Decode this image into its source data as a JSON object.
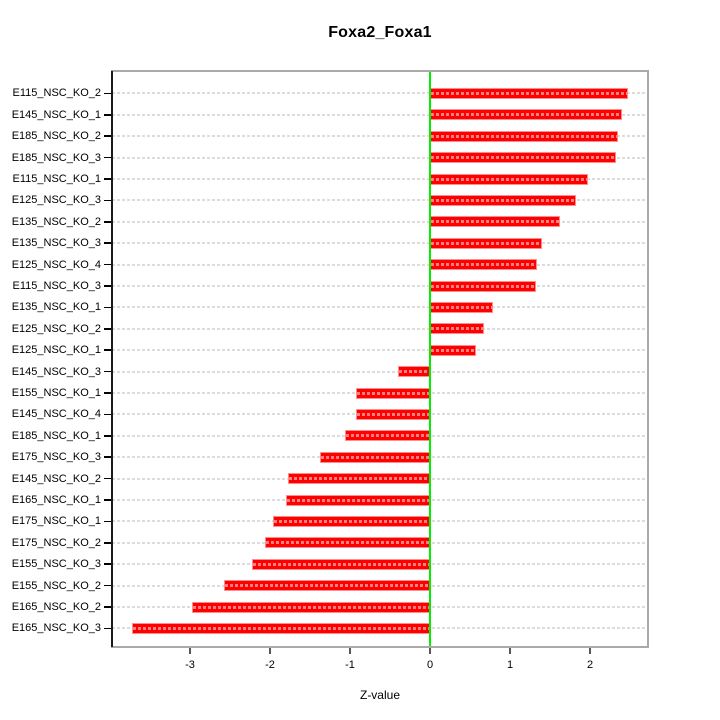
{
  "chart_data": {
    "type": "bar",
    "orientation": "horizontal",
    "title": "Foxa2_Foxa1",
    "xlabel": "Z-value",
    "ylabel": "",
    "categories": [
      "E115_NSC_KO_2",
      "E145_NSC_KO_1",
      "E185_NSC_KO_2",
      "E185_NSC_KO_3",
      "E115_NSC_KO_1",
      "E125_NSC_KO_3",
      "E135_NSC_KO_2",
      "E135_NSC_KO_3",
      "E125_NSC_KO_4",
      "E115_NSC_KO_3",
      "E135_NSC_KO_1",
      "E125_NSC_KO_2",
      "E125_NSC_KO_1",
      "E145_NSC_KO_3",
      "E155_NSC_KO_1",
      "E145_NSC_KO_4",
      "E185_NSC_KO_1",
      "E175_NSC_KO_3",
      "E145_NSC_KO_2",
      "E165_NSC_KO_1",
      "E175_NSC_KO_1",
      "E175_NSC_KO_2",
      "E155_NSC_KO_3",
      "E155_NSC_KO_2",
      "E165_NSC_KO_2",
      "E165_NSC_KO_3"
    ],
    "values": [
      2.48,
      2.4,
      2.35,
      2.33,
      1.98,
      1.83,
      1.63,
      1.4,
      1.34,
      1.32,
      0.79,
      0.68,
      0.57,
      -0.4,
      -0.93,
      -0.93,
      -1.06,
      -1.37,
      -1.78,
      -1.8,
      -1.96,
      -2.06,
      -2.22,
      -2.58,
      -2.98,
      -3.73
    ],
    "x_ticks": [
      -3,
      -2,
      -1,
      0,
      1,
      2
    ],
    "xlim": [
      -3.98,
      2.72
    ],
    "grid": "dashed-horizontal-per-row",
    "legend": "none",
    "zero_line": true,
    "colors": {
      "bar": "#ff0000",
      "bar_edge": "#ff8d8d",
      "grid_on_bar": "rgba(255,255,255,0.5)",
      "zero_line": "#00ee00",
      "grid": "#dcdcdc",
      "box": "#a9a9a9",
      "axis": "#000000"
    }
  }
}
